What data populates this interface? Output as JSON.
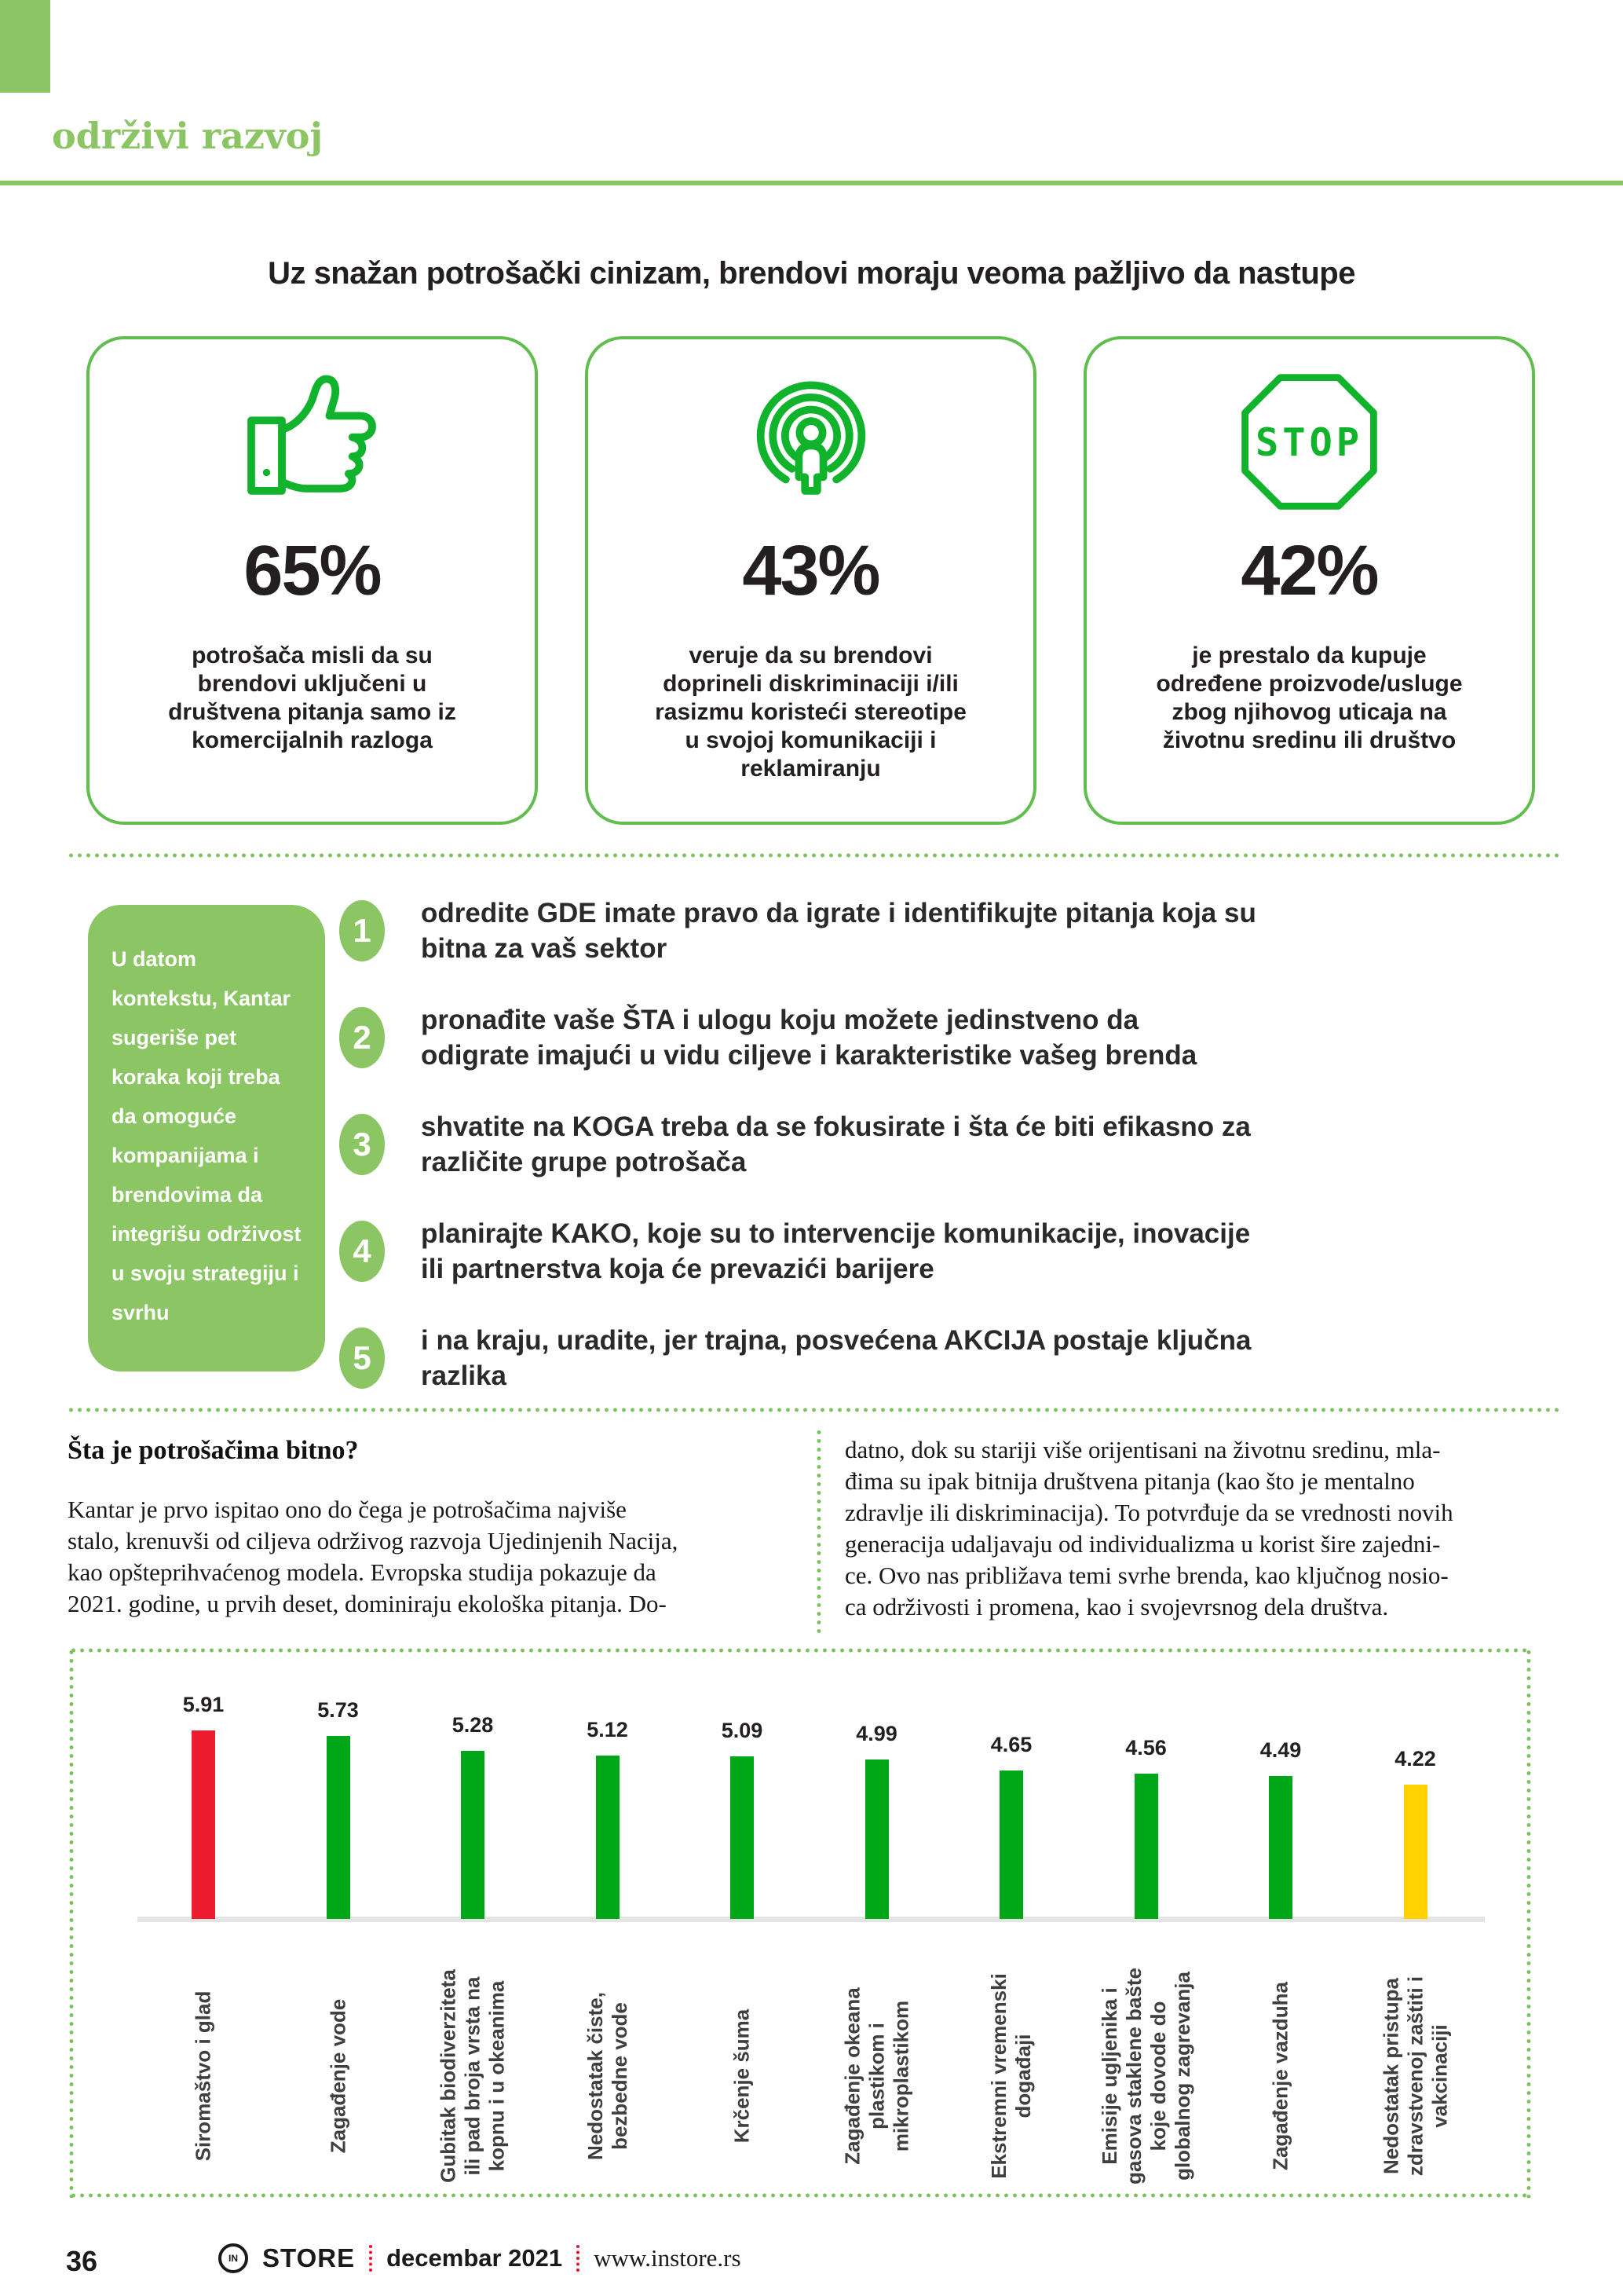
{
  "header": {
    "section_label": "održivi razvoj",
    "title": "Uz snažan potrošački cinizam, brendovi moraju veoma pažljivo da nastupe"
  },
  "stats": [
    {
      "icon": "thumbs-up-icon",
      "value": "65%",
      "text": "potrošača misli da su\nbrendovi uključeni u\ndruštvena pitanja samo iz\nkomercijalnih razloga"
    },
    {
      "icon": "broadcast-person-icon",
      "value": "43%",
      "text": "veruje da su brendovi\ndoprineli diskriminaciji i/ili\nrasizmu koristeći stereotipe\nu svojoj komunikaciji i\nreklamiranju"
    },
    {
      "icon": "stop-sign-icon",
      "value": "42%",
      "text": "je prestalo da kupuje\nodređene proizvode/usluge\nzbog njihovog uticaja na\nživotnu sredinu ili društvo"
    }
  ],
  "kantar_box": {
    "text": "U datom\nkontekstu, Kantar\nsugeriše pet\nkoraka koji treba\nda omoguće\nkompanijama i\nbrendovima da\nintegrišu održivost\nu svoju strategiju i\nsvrhu"
  },
  "steps": [
    {
      "number": "1",
      "text": "odredite GDE imate pravo da igrate i identifikujte pitanja koja su\nbitna za vaš sektor"
    },
    {
      "number": "2",
      "text": "pronađite vaše ŠTA i ulogu koju možete jedinstveno da\nodigrate imajući u vidu ciljeve i karakteristike vašeg brenda"
    },
    {
      "number": "3",
      "text": "shvatite na KOGA treba da se fokusirate i šta će biti efikasno za\nrazličite grupe potrošača"
    },
    {
      "number": "4",
      "text": "planirajte KAKO, koje su to intervencije komunikacije, inovacije\nili partnerstva koja će prevazići barijere"
    },
    {
      "number": "5",
      "text": "i na kraju, uradite, jer trajna, posvećena AKCIJA postaje ključna\nrazlika"
    }
  ],
  "article": {
    "heading": "Šta je potrošačima bitno?",
    "col_left": "  Kantar je prvo ispitao ono do čega je potrošačima najviše\nstalo, krenuvši od ciljeva održivog razvoja Ujedinjenih Nacija,\nkao opšteprihvaćenog modela. Evropska studija pokazuje da\n2021. godine, u prvih deset, dominiraju ekološka pitanja. Do-",
    "col_right": "datno, dok su stariji više orijentisani na životnu sredinu, mla-\nđima su ipak bitnija društvena pitanja (kao što je mentalno\nzdravlje ili diskriminacija). To potvrđuje da se vrednosti novih\ngeneracija udaljavaju od individualizma u korist šire zajedni-\nce. Ovo nas približava temi svrhe brenda, kao ključnog nosio-\nca održivosti i promena, kao i svojevrsnog dela društva."
  },
  "chart_data": {
    "type": "bar",
    "categories": [
      "Siromaštvo i glad",
      "Zagađenje vode",
      "Gubitak biodiverziteta\nili pad broja vrsta na\nkopnu i u okeanima",
      "Nedostatak čiste,\nbezbedne vode",
      "Krčenje šuma",
      "Zagađenje okeana\nplastikom i\nmikroplastikom",
      "Ekstremni vremenski\ndogađaji",
      "Emisije ugljenika i\ngasova staklene bašte\nkoje dovode do\nglobalnog zagrevanja",
      "Zagađenje vazduha",
      "Nedostatak pristupa\nzdravstvenoj zaštiti i\nvakcinaciji"
    ],
    "values": [
      5.91,
      5.73,
      5.28,
      5.12,
      5.09,
      4.99,
      4.65,
      4.56,
      4.49,
      4.22
    ],
    "bar_colors": [
      "#ED1C2E",
      "#00A819",
      "#00A819",
      "#00A819",
      "#00A819",
      "#00A819",
      "#00A819",
      "#00A819",
      "#00A819",
      "#FFD100"
    ],
    "value_labels_shown": true,
    "ylim": [
      0,
      6
    ],
    "gridlines": false,
    "legend": "none"
  },
  "colors": {
    "accent_green_light": "#8CC563",
    "accent_green_bright": "#12B32C",
    "card_border_green": "#62BD4F",
    "dotted_line_green": "#7CC35F",
    "bar_green": "#00A819",
    "bar_red": "#ED1C2E",
    "bar_yellow": "#FFD100",
    "footer_separator_red": "#E8112D"
  },
  "footer": {
    "page_number": "36",
    "logo_text": "IN",
    "brand": "STORE",
    "date": "decembar 2021",
    "website": "www.instore.rs"
  }
}
